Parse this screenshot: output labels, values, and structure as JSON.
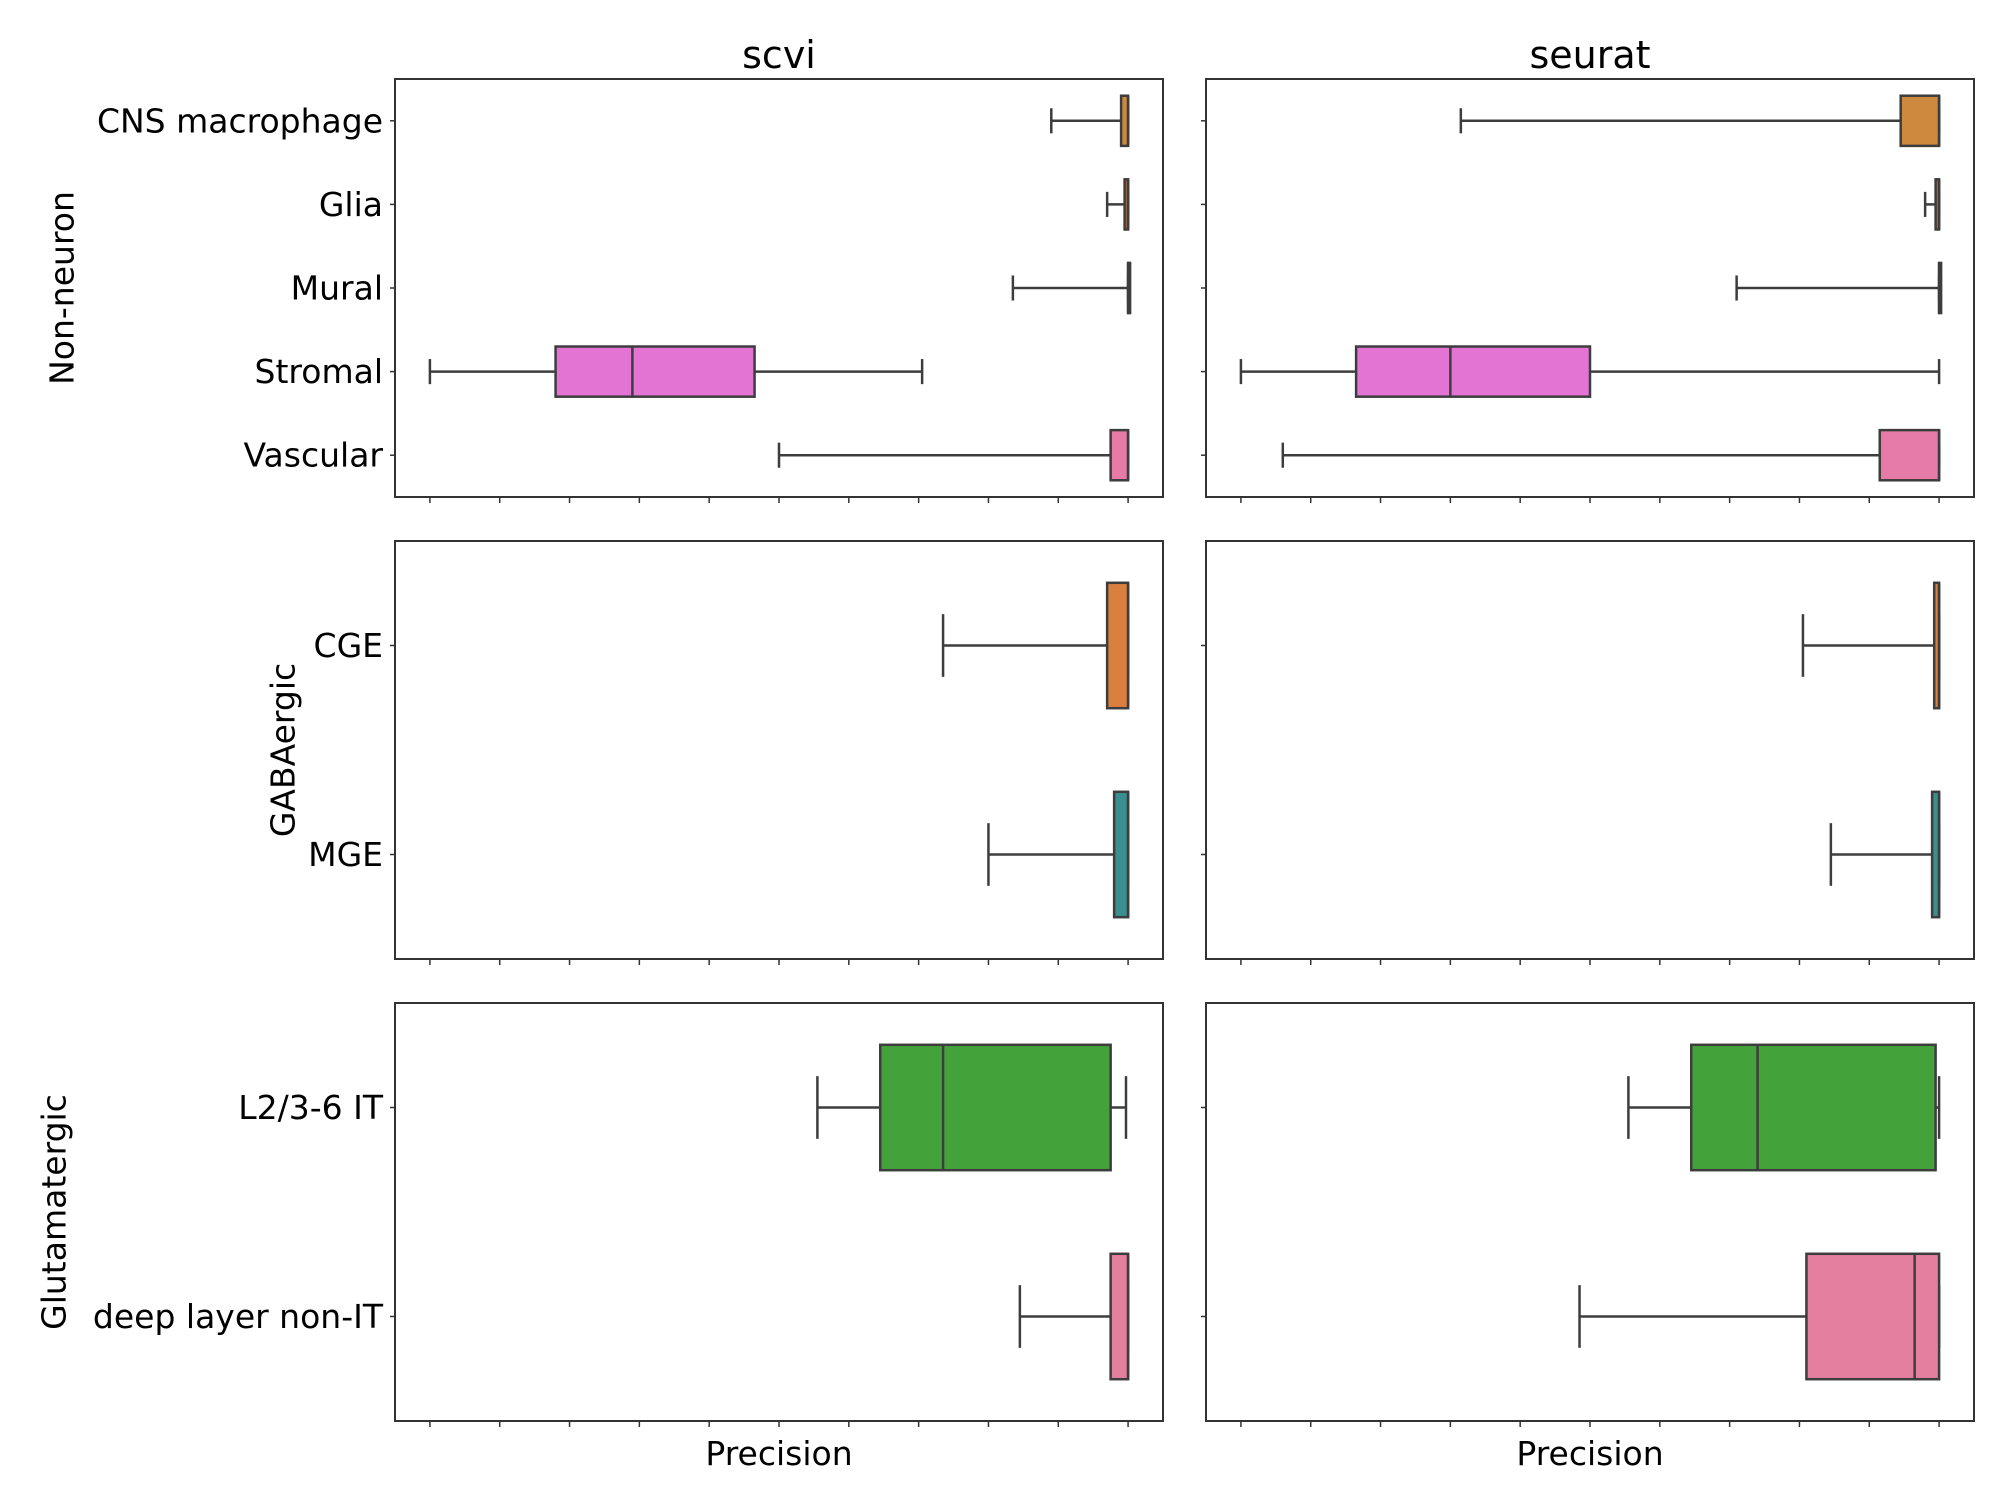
{
  "chart_data": {
    "type": "box",
    "xlabel": "Precision",
    "columns": [
      "scvi",
      "seurat"
    ],
    "x_range": [
      -0.05,
      1.05
    ],
    "x_ticks": [
      0,
      0.1,
      0.2,
      0.3,
      0.4,
      0.5,
      0.6,
      0.7,
      0.8,
      0.9,
      1.0
    ],
    "x_tick_labels_shown": false,
    "rows": [
      {
        "label": "Non-neuron",
        "categories": [
          "CNS macrophage",
          "Glia",
          "Mural",
          "Stromal",
          "Vascular"
        ],
        "colors": [
          "#cd8a3f",
          "#bd6e3c",
          "#c98555",
          "#e374d3",
          "#e57ba6"
        ],
        "panels": {
          "scvi": [
            {
              "min": 0.89,
              "q1": 0.99,
              "median": 1.0,
              "q3": 1.0,
              "max": 1.0
            },
            {
              "min": 0.97,
              "q1": 0.995,
              "median": 1.0,
              "q3": 1.0,
              "max": 1.0
            },
            {
              "min": 0.835,
              "q1": 1.0,
              "median": 1.0,
              "q3": 1.0,
              "max": 1.0
            },
            {
              "min": 0.0,
              "q1": 0.18,
              "median": 0.29,
              "q3": 0.465,
              "max": 0.705
            },
            {
              "min": 0.5,
              "q1": 0.975,
              "median": 1.0,
              "q3": 1.0,
              "max": 1.0
            }
          ],
          "seurat": [
            {
              "min": 0.315,
              "q1": 0.945,
              "median": 1.0,
              "q3": 1.0,
              "max": 1.0
            },
            {
              "min": 0.98,
              "q1": 0.995,
              "median": 1.0,
              "q3": 1.0,
              "max": 1.0
            },
            {
              "min": 0.71,
              "q1": 1.0,
              "median": 1.0,
              "q3": 1.0,
              "max": 1.0
            },
            {
              "min": 0.0,
              "q1": 0.165,
              "median": 0.3,
              "q3": 0.5,
              "max": 1.0
            },
            {
              "min": 0.06,
              "q1": 0.915,
              "median": 1.0,
              "q3": 1.0,
              "max": 1.0
            }
          ]
        }
      },
      {
        "label": "GABAergic",
        "categories": [
          "CGE",
          "MGE"
        ],
        "colors": [
          "#d9803f",
          "#3a9090"
        ],
        "panels": {
          "scvi": [
            {
              "min": 0.735,
              "q1": 0.97,
              "median": 1.0,
              "q3": 1.0,
              "max": 1.0
            },
            {
              "min": 0.8,
              "q1": 0.98,
              "median": 1.0,
              "q3": 1.0,
              "max": 1.0
            }
          ],
          "seurat": [
            {
              "min": 0.805,
              "q1": 0.993,
              "median": 1.0,
              "q3": 1.0,
              "max": 1.0
            },
            {
              "min": 0.845,
              "q1": 0.99,
              "median": 1.0,
              "q3": 1.0,
              "max": 1.0
            }
          ]
        }
      },
      {
        "label": "Glutamatergic",
        "categories": [
          "L2/3-6 IT",
          "deep layer non-IT"
        ],
        "colors": [
          "#44a23a",
          "#e47f9f"
        ],
        "panels": {
          "scvi": [
            {
              "min": 0.555,
              "q1": 0.645,
              "median": 0.735,
              "q3": 0.975,
              "max": 0.997
            },
            {
              "min": 0.845,
              "q1": 0.975,
              "median": 1.0,
              "q3": 1.0,
              "max": 1.0
            }
          ],
          "seurat": [
            {
              "min": 0.555,
              "q1": 0.645,
              "median": 0.74,
              "q3": 0.995,
              "max": 1.0
            },
            {
              "min": 0.485,
              "q1": 0.81,
              "median": 0.965,
              "q3": 1.0,
              "max": 1.0
            }
          ]
        }
      }
    ]
  }
}
